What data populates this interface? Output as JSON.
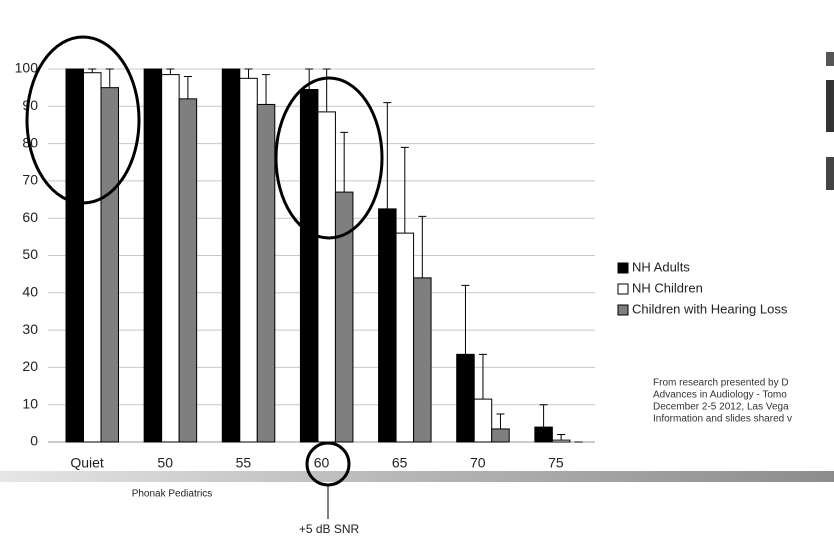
{
  "chart_data": {
    "type": "bar",
    "categories": [
      "Quiet",
      "50",
      "55",
      "60",
      "65",
      "70",
      "75"
    ],
    "series": [
      {
        "name": "NH Adults",
        "color": "#000000",
        "values": [
          100,
          100,
          100,
          94.5,
          62.5,
          23.5,
          4
        ],
        "errors": [
          0,
          0,
          0,
          5.5,
          28.5,
          18.5,
          6
        ]
      },
      {
        "name": "NH Children",
        "color": "#ffffff",
        "values": [
          99,
          98.5,
          97.5,
          88.5,
          56,
          11.5,
          0.5
        ],
        "errors": [
          1,
          1.5,
          2.5,
          11.5,
          23,
          12,
          1.5
        ]
      },
      {
        "name": "Children with Hearing Loss",
        "color": "#7f7f7f",
        "values": [
          95,
          92,
          90.5,
          67,
          44,
          3.5,
          0
        ],
        "errors": [
          5,
          6,
          8,
          16,
          16.5,
          4,
          0
        ]
      }
    ],
    "ylim": [
      0,
      100
    ],
    "yticks": [
      0,
      10,
      20,
      30,
      40,
      50,
      60,
      70,
      80,
      90,
      100
    ],
    "grid": true
  },
  "annotations": {
    "source_note": [
      "From research presented by D",
      "Advances in Audiology - Tomo",
      "December 2-5 2012, Las Vega",
      "Information and slides shared v"
    ],
    "footer": "Phonak Pediatrics",
    "snr_label": "+5 dB SNR"
  }
}
